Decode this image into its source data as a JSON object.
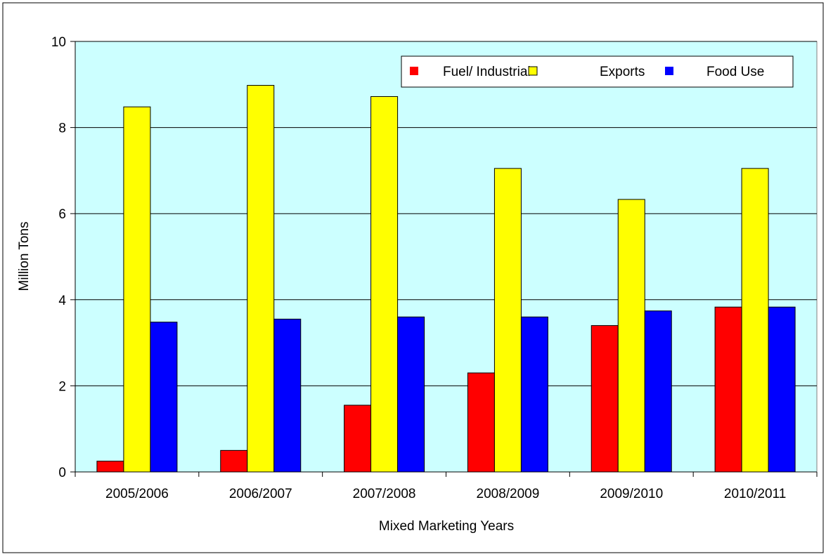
{
  "chart_data": {
    "type": "bar",
    "title": "",
    "xlabel": "Mixed Marketing Years",
    "ylabel": "Million Tons",
    "ylim": [
      0,
      10
    ],
    "yticks": [
      "0",
      "2",
      "4",
      "6",
      "8",
      "10"
    ],
    "grid": true,
    "legend_position": "top-right",
    "categories": [
      "2005/2006",
      "2006/2007",
      "2007/2008",
      "2008/2009",
      "2009/2010",
      "2010/2011"
    ],
    "series": [
      {
        "name": "Fuel/ Industrial",
        "color": "#ff0000",
        "values": [
          0.25,
          0.5,
          1.55,
          2.3,
          3.4,
          3.83
        ]
      },
      {
        "name": "Exports",
        "color": "#ffff00",
        "values": [
          8.48,
          8.98,
          8.72,
          7.05,
          6.33,
          7.05
        ]
      },
      {
        "name": "Food Use",
        "color": "#0000ff",
        "values": [
          3.48,
          3.55,
          3.6,
          3.6,
          3.74,
          3.83
        ]
      }
    ],
    "plot_background": "#ccffff"
  }
}
